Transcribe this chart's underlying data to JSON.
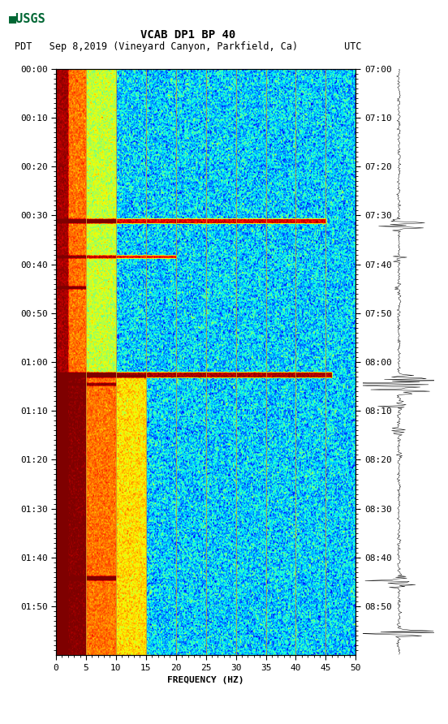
{
  "title_line1": "VCAB DP1 BP 40",
  "title_line2": "PDT   Sep 8,2019 (Vineyard Canyon, Parkfield, Ca)        UTC",
  "xlabel": "FREQUENCY (HZ)",
  "freq_min": 0,
  "freq_max": 50,
  "freq_ticks": [
    0,
    5,
    10,
    15,
    20,
    25,
    30,
    35,
    40,
    45,
    50
  ],
  "left_time_labels": [
    "00:00",
    "00:10",
    "00:20",
    "00:30",
    "00:40",
    "00:50",
    "01:00",
    "01:10",
    "01:20",
    "01:30",
    "01:40",
    "01:50"
  ],
  "right_time_labels": [
    "07:00",
    "07:10",
    "07:20",
    "07:30",
    "07:40",
    "07:50",
    "08:00",
    "08:10",
    "08:20",
    "08:30",
    "08:40",
    "08:50"
  ],
  "vertical_lines_hz": [
    5,
    10,
    15,
    20,
    25,
    30,
    35,
    40,
    45
  ],
  "vline_color": "#c8a030",
  "background_color": "#ffffff",
  "colormap": "jet",
  "fig_width": 5.52,
  "fig_height": 8.92,
  "usgs_color": "#006633",
  "title_fontsize": 9,
  "label_fontsize": 8,
  "tick_fontsize": 8
}
